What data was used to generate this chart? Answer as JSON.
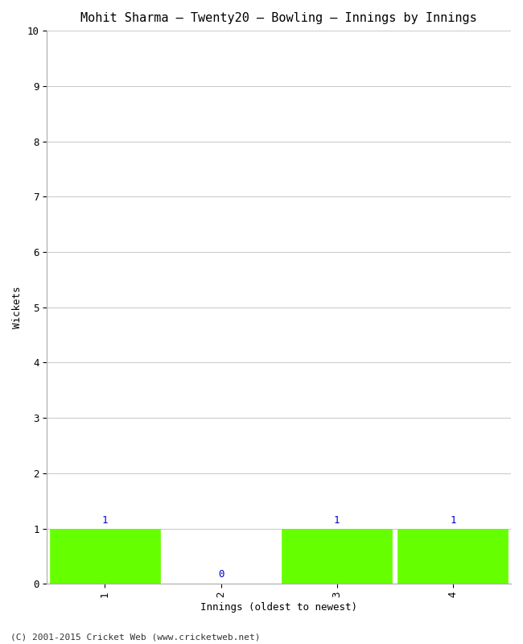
{
  "title": "Mohit Sharma – Twenty20 – Bowling – Innings by Innings",
  "xlabel": "Innings (oldest to newest)",
  "ylabel": "Wickets",
  "categories": [
    1,
    2,
    3,
    4
  ],
  "values": [
    1,
    0,
    1,
    1
  ],
  "bar_color": "#66ff00",
  "bar_edge_color": "#66ff00",
  "zero_label_color": "#0000cc",
  "nonzero_label_color": "#0000cc",
  "ylim": [
    0,
    10
  ],
  "yticks": [
    0,
    1,
    2,
    3,
    4,
    5,
    6,
    7,
    8,
    9,
    10
  ],
  "background_color": "#ffffff",
  "plot_bg_color": "#ffffff",
  "grid_color": "#cccccc",
  "footer": "(C) 2001-2015 Cricket Web (www.cricketweb.net)",
  "title_fontsize": 11,
  "label_fontsize": 9,
  "tick_fontsize": 9,
  "footer_fontsize": 8,
  "font_family": "monospace"
}
